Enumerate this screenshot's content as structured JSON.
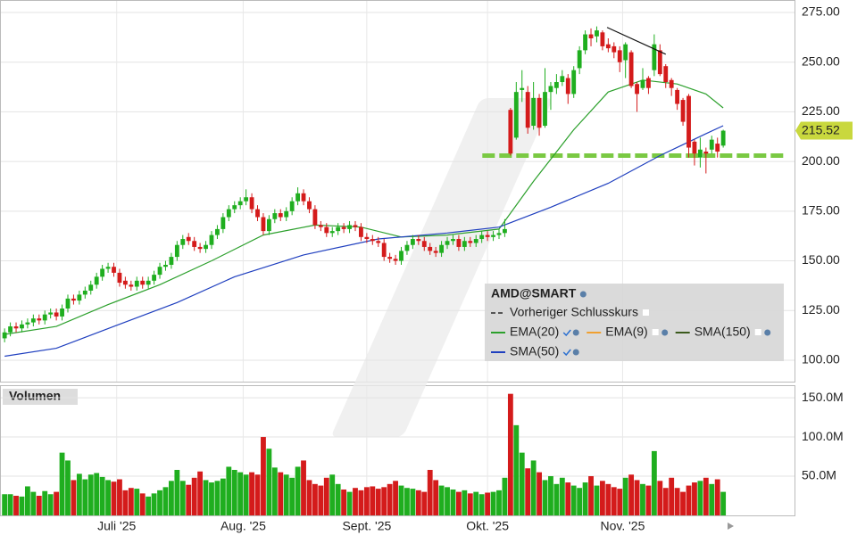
{
  "chart_data": {
    "type": "candlestick",
    "xlim": [
      -0.8,
      137.4
    ],
    "xticks": [
      {
        "value": 19.5,
        "label": "Juli '25"
      },
      {
        "value": 41.5,
        "label": "Aug. '25"
      },
      {
        "value": 63,
        "label": "Sept. '25"
      },
      {
        "value": 84,
        "label": "Okt. '25"
      },
      {
        "value": 107.5,
        "label": "Nov. '25"
      }
    ],
    "ylim": [
      89.2,
      281.3
    ],
    "yticks": [
      {
        "value": 100,
        "label": "100.00"
      },
      {
        "value": 125,
        "label": "125.00"
      },
      {
        "value": 150,
        "label": "150.00"
      },
      {
        "value": 175,
        "label": "175.00"
      },
      {
        "value": 200,
        "label": "200.00"
      },
      {
        "value": 225,
        "label": "225.00"
      },
      {
        "value": 250,
        "label": "250.00"
      },
      {
        "value": 275,
        "label": "275.00"
      }
    ],
    "grid": true,
    "up_color": "#1fae1f",
    "down_color": "#d41b1b",
    "open": [
      111,
      114,
      117,
      116,
      118,
      119,
      121,
      120,
      123,
      124,
      122,
      126,
      131,
      130,
      133,
      135,
      138,
      142,
      146,
      147,
      144,
      140,
      138,
      137,
      140,
      138,
      140,
      143,
      147,
      148,
      152,
      158,
      162,
      160,
      157,
      156,
      158,
      163,
      166,
      172,
      176,
      178,
      180,
      182,
      176,
      172,
      165,
      171,
      174,
      172,
      175,
      180,
      184,
      180,
      176,
      168,
      167,
      164,
      165,
      167,
      166,
      168,
      167,
      162,
      161,
      160,
      159,
      152,
      151,
      150,
      155,
      158,
      161,
      160,
      157,
      155,
      154,
      158,
      160,
      161,
      157,
      160,
      159,
      161,
      163,
      162,
      163,
      164,
      226,
      212,
      236,
      235,
      218,
      232,
      218,
      235,
      237,
      240,
      242,
      234,
      247,
      256,
      264,
      263,
      265,
      259,
      258,
      256,
      251,
      255,
      239,
      237,
      242,
      246,
      256,
      248,
      241,
      236,
      231,
      233,
      210,
      202,
      205,
      206,
      209,
      208
    ],
    "high": [
      116,
      119,
      119,
      120,
      121,
      123,
      123,
      125,
      126,
      126,
      128,
      133,
      133,
      135,
      137,
      140,
      144,
      148,
      149,
      149,
      146,
      142,
      140,
      142,
      142,
      142,
      145,
      149,
      150,
      154,
      160,
      163,
      164,
      162,
      159,
      160,
      165,
      168,
      174,
      178,
      180,
      182,
      186,
      184,
      178,
      174,
      173,
      176,
      176,
      177,
      182,
      187,
      186,
      182,
      178,
      170,
      169,
      167,
      169,
      169,
      170,
      170,
      169,
      164,
      163,
      162,
      161,
      154,
      153,
      157,
      160,
      163,
      163,
      162,
      159,
      157,
      160,
      162,
      163,
      163,
      162,
      162,
      163,
      165,
      165,
      165,
      166,
      171,
      227,
      240,
      246,
      238,
      240,
      234,
      247,
      240,
      244,
      246,
      244,
      248,
      258,
      266,
      267,
      268,
      266,
      262,
      260,
      258,
      260,
      256,
      240,
      247,
      243,
      264,
      259,
      249,
      242,
      237,
      232,
      234,
      211,
      212,
      207,
      213,
      212,
      216
    ],
    "low": [
      109,
      112,
      114,
      114,
      116,
      117,
      118,
      118,
      121,
      120,
      120,
      124,
      128,
      128,
      131,
      133,
      136,
      140,
      144,
      142,
      137,
      136,
      135,
      135,
      136,
      136,
      138,
      141,
      145,
      146,
      150,
      156,
      158,
      155,
      154,
      154,
      156,
      161,
      164,
      170,
      174,
      176,
      178,
      174,
      170,
      163,
      163,
      169,
      170,
      170,
      173,
      178,
      178,
      174,
      166,
      165,
      162,
      162,
      163,
      164,
      164,
      165,
      160,
      159,
      158,
      157,
      150,
      149,
      148,
      148,
      153,
      156,
      158,
      155,
      153,
      152,
      152,
      156,
      158,
      155,
      155,
      157,
      157,
      159,
      160,
      160,
      161,
      162,
      203,
      211,
      230,
      214,
      216,
      213,
      217,
      226,
      234,
      238,
      229,
      232,
      244,
      254,
      258,
      260,
      256,
      255,
      252,
      245,
      242,
      237,
      225,
      236,
      234,
      243,
      243,
      237,
      233,
      226,
      218,
      202,
      198,
      197,
      194,
      204,
      202,
      207
    ],
    "close": [
      114,
      117,
      116,
      118,
      119,
      121,
      120,
      123,
      124,
      122,
      126,
      131,
      130,
      133,
      135,
      138,
      142,
      146,
      147,
      144,
      139,
      138,
      137,
      140,
      138,
      140,
      143,
      147,
      148,
      152,
      158,
      161,
      160,
      157,
      156,
      158,
      163,
      166,
      172,
      176,
      178,
      180,
      182,
      176,
      172,
      165,
      171,
      174,
      172,
      175,
      180,
      184,
      180,
      176,
      168,
      167,
      164,
      165,
      167,
      166,
      168,
      167,
      162,
      161,
      160,
      159,
      152,
      151,
      150,
      155,
      158,
      161,
      160,
      157,
      155,
      154,
      158,
      160,
      161,
      157,
      160,
      159,
      161,
      163,
      162,
      163,
      164,
      166,
      204,
      235,
      237,
      217,
      232,
      217,
      235,
      238,
      240,
      243,
      234,
      246,
      256,
      264,
      262,
      266,
      258,
      257,
      255,
      250,
      259,
      238,
      234,
      241,
      237,
      259,
      244,
      240,
      237,
      229,
      220,
      207,
      204,
      206,
      204,
      211,
      205,
      215.52
    ],
    "last_price_color": "#c9d83e",
    "volume_panel": {
      "title": "Volumen",
      "ylim": [
        0,
        166
      ],
      "yticks": [
        {
          "value": 50,
          "label": "50.0M"
        },
        {
          "value": 100,
          "label": "100.0M"
        },
        {
          "value": 150,
          "label": "150.0M"
        }
      ],
      "values": [
        27,
        27,
        25,
        24,
        37,
        30,
        25,
        31,
        27,
        30,
        80,
        70,
        45,
        53,
        46,
        52,
        54,
        49,
        45,
        43,
        46,
        32,
        35,
        34,
        28,
        24,
        28,
        32,
        36,
        44,
        58,
        44,
        39,
        48,
        56,
        45,
        42,
        44,
        47,
        62,
        58,
        55,
        52,
        55,
        52,
        100,
        85,
        61,
        55,
        52,
        48,
        62,
        70,
        45,
        40,
        38,
        48,
        52,
        40,
        33,
        30,
        35,
        32,
        36,
        37,
        34,
        36,
        40,
        44,
        38,
        35,
        34,
        32,
        30,
        58,
        45,
        38,
        36,
        33,
        30,
        32,
        28,
        30,
        27,
        29,
        30,
        32,
        48,
        155,
        115,
        80,
        60,
        70,
        55,
        45,
        50,
        40,
        48,
        42,
        38,
        35,
        42,
        50,
        38,
        44,
        40,
        36,
        34,
        48,
        52,
        45,
        40,
        38,
        82,
        44,
        35,
        48,
        35,
        30,
        38,
        42,
        44,
        48,
        40,
        46,
        30
      ]
    },
    "indicators": [
      {
        "name": "EMA(20)",
        "color": "#2ca02c",
        "visible": true,
        "x": [
          0,
          9,
          18,
          27,
          36,
          45,
          54,
          62,
          69,
          77,
          86,
          92,
          99,
          105,
          111,
          117,
          122,
          125
        ],
        "values": [
          113,
          117,
          128,
          138,
          150,
          163,
          168,
          167,
          162,
          163,
          166,
          190,
          216,
          235,
          241,
          239,
          234,
          227
        ]
      },
      {
        "name": "EMA(9)",
        "color": "#f0a030",
        "visible": false
      },
      {
        "name": "SMA(150)",
        "color": "#3b5a1c",
        "visible": false
      },
      {
        "name": "SMA(50)",
        "color": "#1f3fbf",
        "visible": true,
        "x": [
          0,
          9,
          19,
          30,
          40,
          52,
          65,
          77,
          86,
          95,
          105,
          114,
          122,
          125
        ],
        "values": [
          102,
          106,
          117,
          129,
          142,
          153,
          161,
          164,
          167,
          177,
          189,
          203,
          214,
          218
        ]
      }
    ],
    "legend": {
      "title": "AMD@SMART",
      "previous_close": "Vorheriger Schlusskurs",
      "previous_close_color": "#555555"
    },
    "support_line": {
      "value": 203,
      "x": [
        83.1,
        136.2
      ],
      "color": "#7ac943"
    },
    "trend_line": {
      "x": [
        104.8,
        115
      ],
      "values": [
        267.5,
        254
      ],
      "color": "#111111"
    }
  }
}
